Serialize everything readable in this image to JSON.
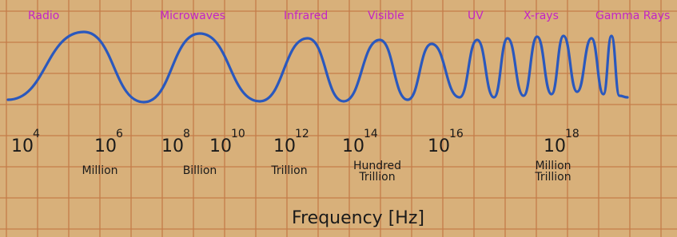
{
  "bands": [
    "Radio",
    "Microwaves",
    "Infrared",
    "Visible",
    "UV",
    "X-rays",
    "Gamma Rays"
  ],
  "powers": [
    {
      "base": "10",
      "exponent": "4"
    },
    {
      "base": "10",
      "exponent": "6"
    },
    {
      "base": "10",
      "exponent": "8"
    },
    {
      "base": "10",
      "exponent": "10"
    },
    {
      "base": "10",
      "exponent": "12"
    },
    {
      "base": "10",
      "exponent": "14"
    },
    {
      "base": "10",
      "exponent": "16"
    },
    {
      "base": "10",
      "exponent": "18"
    }
  ],
  "words": [
    [
      "Million"
    ],
    [
      "Billion"
    ],
    [
      "Trillion"
    ],
    [
      "Hundred",
      "Trillion"
    ],
    [
      "Million",
      "Trillion"
    ]
  ],
  "axis_label": "Frequency [Hz]"
}
